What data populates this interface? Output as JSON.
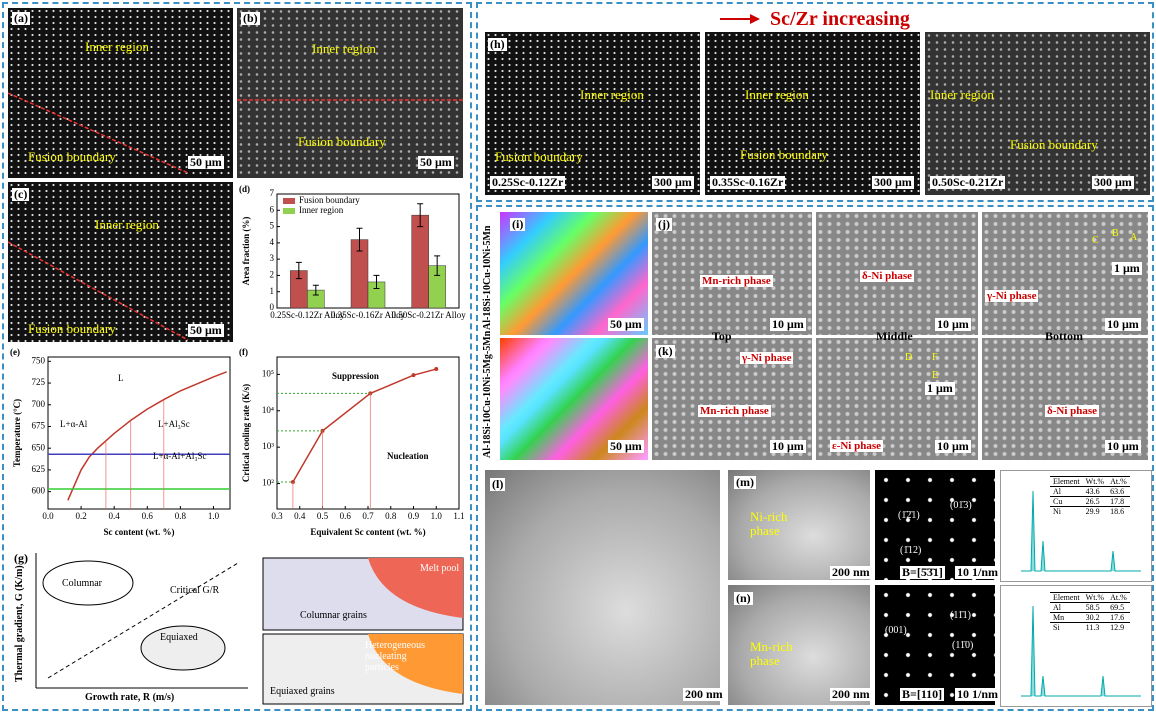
{
  "panels": {
    "a": {
      "label": "(a)",
      "texts": [
        "Inner region",
        "Fusion boundary",
        "50 μm"
      ]
    },
    "b": {
      "label": "(b)",
      "texts": [
        "Inner region",
        "Fusion boundary",
        "50 μm"
      ]
    },
    "c": {
      "label": "(c)",
      "texts": [
        "Inner region",
        "Fusion boundary",
        "50 μm"
      ]
    },
    "g": {
      "label": "(g)",
      "texts": [
        "Thermal gradient, G (K/m)",
        "Growth rate, R (m/s)",
        "Columnar",
        "Equiaxed",
        "Critical G/R",
        "Melt pool",
        "Columnar grains",
        "Heterogeneous nucleating particles",
        "Equiaxed grains"
      ]
    },
    "h": {
      "label": "(h)",
      "header": "Sc/Zr increasing",
      "images": [
        {
          "texts": [
            "Inner region",
            "Fusion boundary"
          ],
          "alloy": "0.25Sc-0.12Zr",
          "scale": "300 μm"
        },
        {
          "texts": [
            "Inner region",
            "Fusion boundary"
          ],
          "alloy": "0.35Sc-0.16Zr",
          "scale": "300 μm"
        },
        {
          "texts": [
            "Inner region",
            "Fusion boundary"
          ],
          "alloy": "0.50Sc-0.21Zr",
          "scale": "300 μm"
        }
      ]
    },
    "i": {
      "label": "(i)",
      "alloys": [
        "Al-18Si-10Cu-10Ni-5Mn",
        "Al-18Si-10Cu-10Ni-5Mg-5Mn"
      ],
      "scales": [
        "50 μm",
        "50 μm"
      ]
    },
    "j": {
      "label": "(j)",
      "texts": [
        "Mn-rich phase",
        "δ-Ni phase",
        "γ-Ni phase",
        "10 μm",
        "10 μm",
        "10 μm",
        "1 μm",
        "C",
        "B",
        "A"
      ]
    },
    "positions": [
      "Top",
      "Middle",
      "Bottom"
    ],
    "k": {
      "label": "(k)",
      "texts": [
        "γ-Ni phase",
        "Mn-rich phase",
        "ε-Ni phase",
        "δ-Ni phase",
        "10 μm",
        "10 μm",
        "10 μm",
        "1 μm",
        "D",
        "E",
        "F"
      ]
    },
    "l": {
      "label": "(l)",
      "scale": "200 nm"
    },
    "m": {
      "label": "(m)",
      "phase": "Ni-rich phase",
      "scale": "200 nm",
      "zone": "B=[5̄3̄1]",
      "diffraction": [
        "(1̄2̄1)",
        "(01̄3)",
        "(1̄12)"
      ],
      "diff_scale": "10 1/nm"
    },
    "n": {
      "label": "(n)",
      "phase": "Mn-rich phase",
      "scale": "200 nm",
      "zone": "B=[110]",
      "diffraction": [
        "(001)",
        "(11̄1)",
        "(11̄0)"
      ],
      "diff_scale": "10 1/nm"
    }
  },
  "eds": [
    {
      "header": [
        "Element",
        "Wt.%",
        "At.%"
      ],
      "rows": [
        [
          "Al",
          43.6,
          63.6
        ],
        [
          "Cu",
          26.5,
          17.8
        ],
        [
          "Ni",
          29.9,
          18.6
        ]
      ]
    },
    {
      "header": [
        "Element",
        "Wt.%",
        "At.%"
      ],
      "rows": [
        [
          "Al",
          58.5,
          69.5
        ],
        [
          "Mn",
          30.2,
          17.6
        ],
        [
          "Si",
          11.3,
          12.9
        ]
      ]
    }
  ],
  "chart_data": [
    {
      "type": "bar",
      "label": "(d)",
      "ylabel": "Area fraction (%)",
      "categories": [
        "0.25Sc-0.12Zr Alloy",
        "0.35Sc-0.16Zr Alloy",
        "0.50Sc-0.21Zr Alloy"
      ],
      "series": [
        {
          "name": "Fusion boundary",
          "color": "#c0504d",
          "values": [
            2.3,
            4.2,
            5.7
          ],
          "errors": [
            0.5,
            0.7,
            0.7
          ]
        },
        {
          "name": "Inner region",
          "color": "#92d050",
          "values": [
            1.1,
            1.6,
            2.6
          ],
          "errors": [
            0.3,
            0.4,
            0.6
          ]
        }
      ],
      "ylim": [
        0,
        7
      ],
      "yticks": [
        0,
        1,
        2,
        3,
        4,
        5,
        6,
        7
      ],
      "legend": "upper left"
    },
    {
      "type": "line",
      "label": "(e)",
      "xlabel": "Sc content (wt. %)",
      "ylabel": "Temperature (°C)",
      "xlim": [
        0,
        1.1
      ],
      "xticks": [
        {
          "value": 0,
          "label": "0.0"
        },
        0.2,
        0.4,
        0.6,
        0.8,
        {
          "value": 1,
          "label": "1.0"
        }
      ],
      "ylim": [
        580,
        755
      ],
      "yticks": [
        600,
        625,
        650,
        675,
        700,
        725,
        750
      ],
      "series": [
        {
          "color": "#c0392b",
          "x": [
            0.12,
            0.2,
            0.25,
            0.3,
            0.4,
            0.5,
            0.6,
            0.7,
            0.8,
            0.9,
            1.0,
            1.08
          ],
          "values": [
            590,
            625,
            640,
            650,
            667,
            682,
            695,
            706,
            716,
            724,
            732,
            738
          ]
        },
        {
          "color": "#3f3fbf",
          "x": [
            0,
            1.1
          ],
          "values": [
            643,
            643
          ]
        },
        {
          "color": "#33cc33",
          "x": [
            0,
            1.1
          ],
          "values": [
            603,
            603
          ]
        }
      ],
      "markers": [
        0.35,
        0.5,
        0.7
      ],
      "annotations": [
        "L",
        "L+α-Al",
        "L+Al₃Sc",
        "L+α-Al+Al₃Sc"
      ]
    },
    {
      "type": "line",
      "label": "(f)",
      "xlabel": "Equivalent Sc content (wt. %)",
      "ylabel": "Critical cooling rate (K/s)",
      "log_y": true,
      "xlim": [
        0.3,
        1.1
      ],
      "xticks": [
        0.3,
        0.4,
        0.5,
        0.6,
        0.7,
        0.8,
        0.9,
        {
          "value": 1,
          "label": "1.0"
        },
        1.1
      ],
      "ylim": [
        20,
        300000
      ],
      "yticks": [
        {
          "value": 100,
          "label": "10²"
        },
        {
          "value": 1000,
          "label": "10³"
        },
        {
          "value": 10000,
          "label": "10⁴"
        },
        {
          "value": 100000,
          "label": "10⁵"
        }
      ],
      "series": [
        {
          "color": "#c0392b",
          "x": [
            0.37,
            0.5,
            0.71,
            0.9,
            1.0
          ],
          "values": [
            110,
            2800,
            30000,
            95000,
            140000
          ]
        }
      ],
      "annotations": [
        "Suppression",
        "Nucleation"
      ]
    }
  ]
}
